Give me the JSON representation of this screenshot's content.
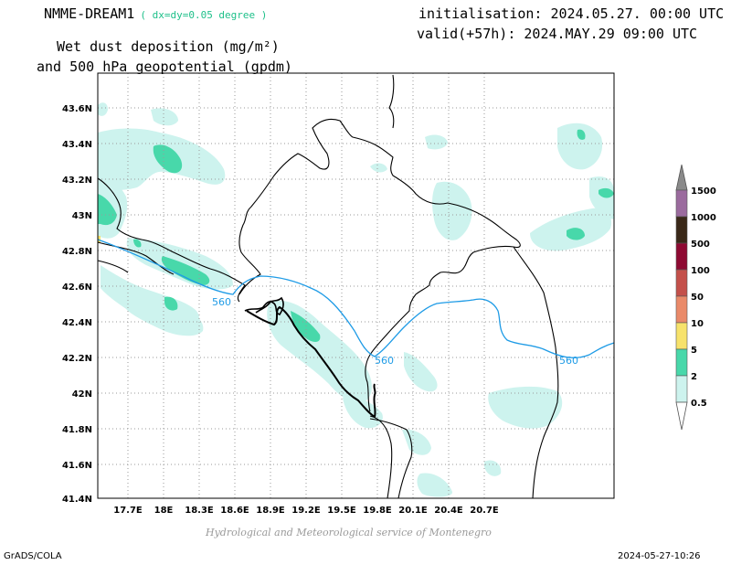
{
  "header": {
    "model": "NMME-DREAM1",
    "resolution": "( dx=dy=0.05 degree )",
    "initialisation": "initialisation: 2024.05.27. 00:00 UTC",
    "valid": "valid(+57h): 2024.MAY.29 09:00 UTC",
    "variable_line1": "Wet dust deposition (mg/m²)",
    "variable_line2": "and 500 hPa geopotential (gpdm)"
  },
  "map": {
    "lon_labels": [
      "17.7E",
      "18E",
      "18.3E",
      "18.6E",
      "18.9E",
      "19.2E",
      "19.5E",
      "19.8E",
      "20.1E",
      "20.4E",
      "20.7E"
    ],
    "lat_labels": [
      "43.6N",
      "43.4N",
      "43.2N",
      "43N",
      "42.8N",
      "42.6N",
      "42.4N",
      "42.2N",
      "42N",
      "41.8N",
      "41.6N",
      "41.4N"
    ],
    "contour_label": "560",
    "contour_color": "#1e9be6",
    "grid": true
  },
  "legend": {
    "levels": [
      "0.5",
      "2",
      "5",
      "10",
      "50",
      "100",
      "500",
      "1000",
      "1500"
    ],
    "colors": [
      "#cdf3ee",
      "#48d8aa",
      "#f7e26b",
      "#ea8a69",
      "#c4504a",
      "#8e0a32",
      "#3a2818",
      "#9b6b9e",
      "#8a8a8a"
    ]
  },
  "credit": "Hydrological and Meteorological service of Montenegro",
  "footer": {
    "left": "GrADS/COLA",
    "right": "2024-05-27-10:26"
  }
}
